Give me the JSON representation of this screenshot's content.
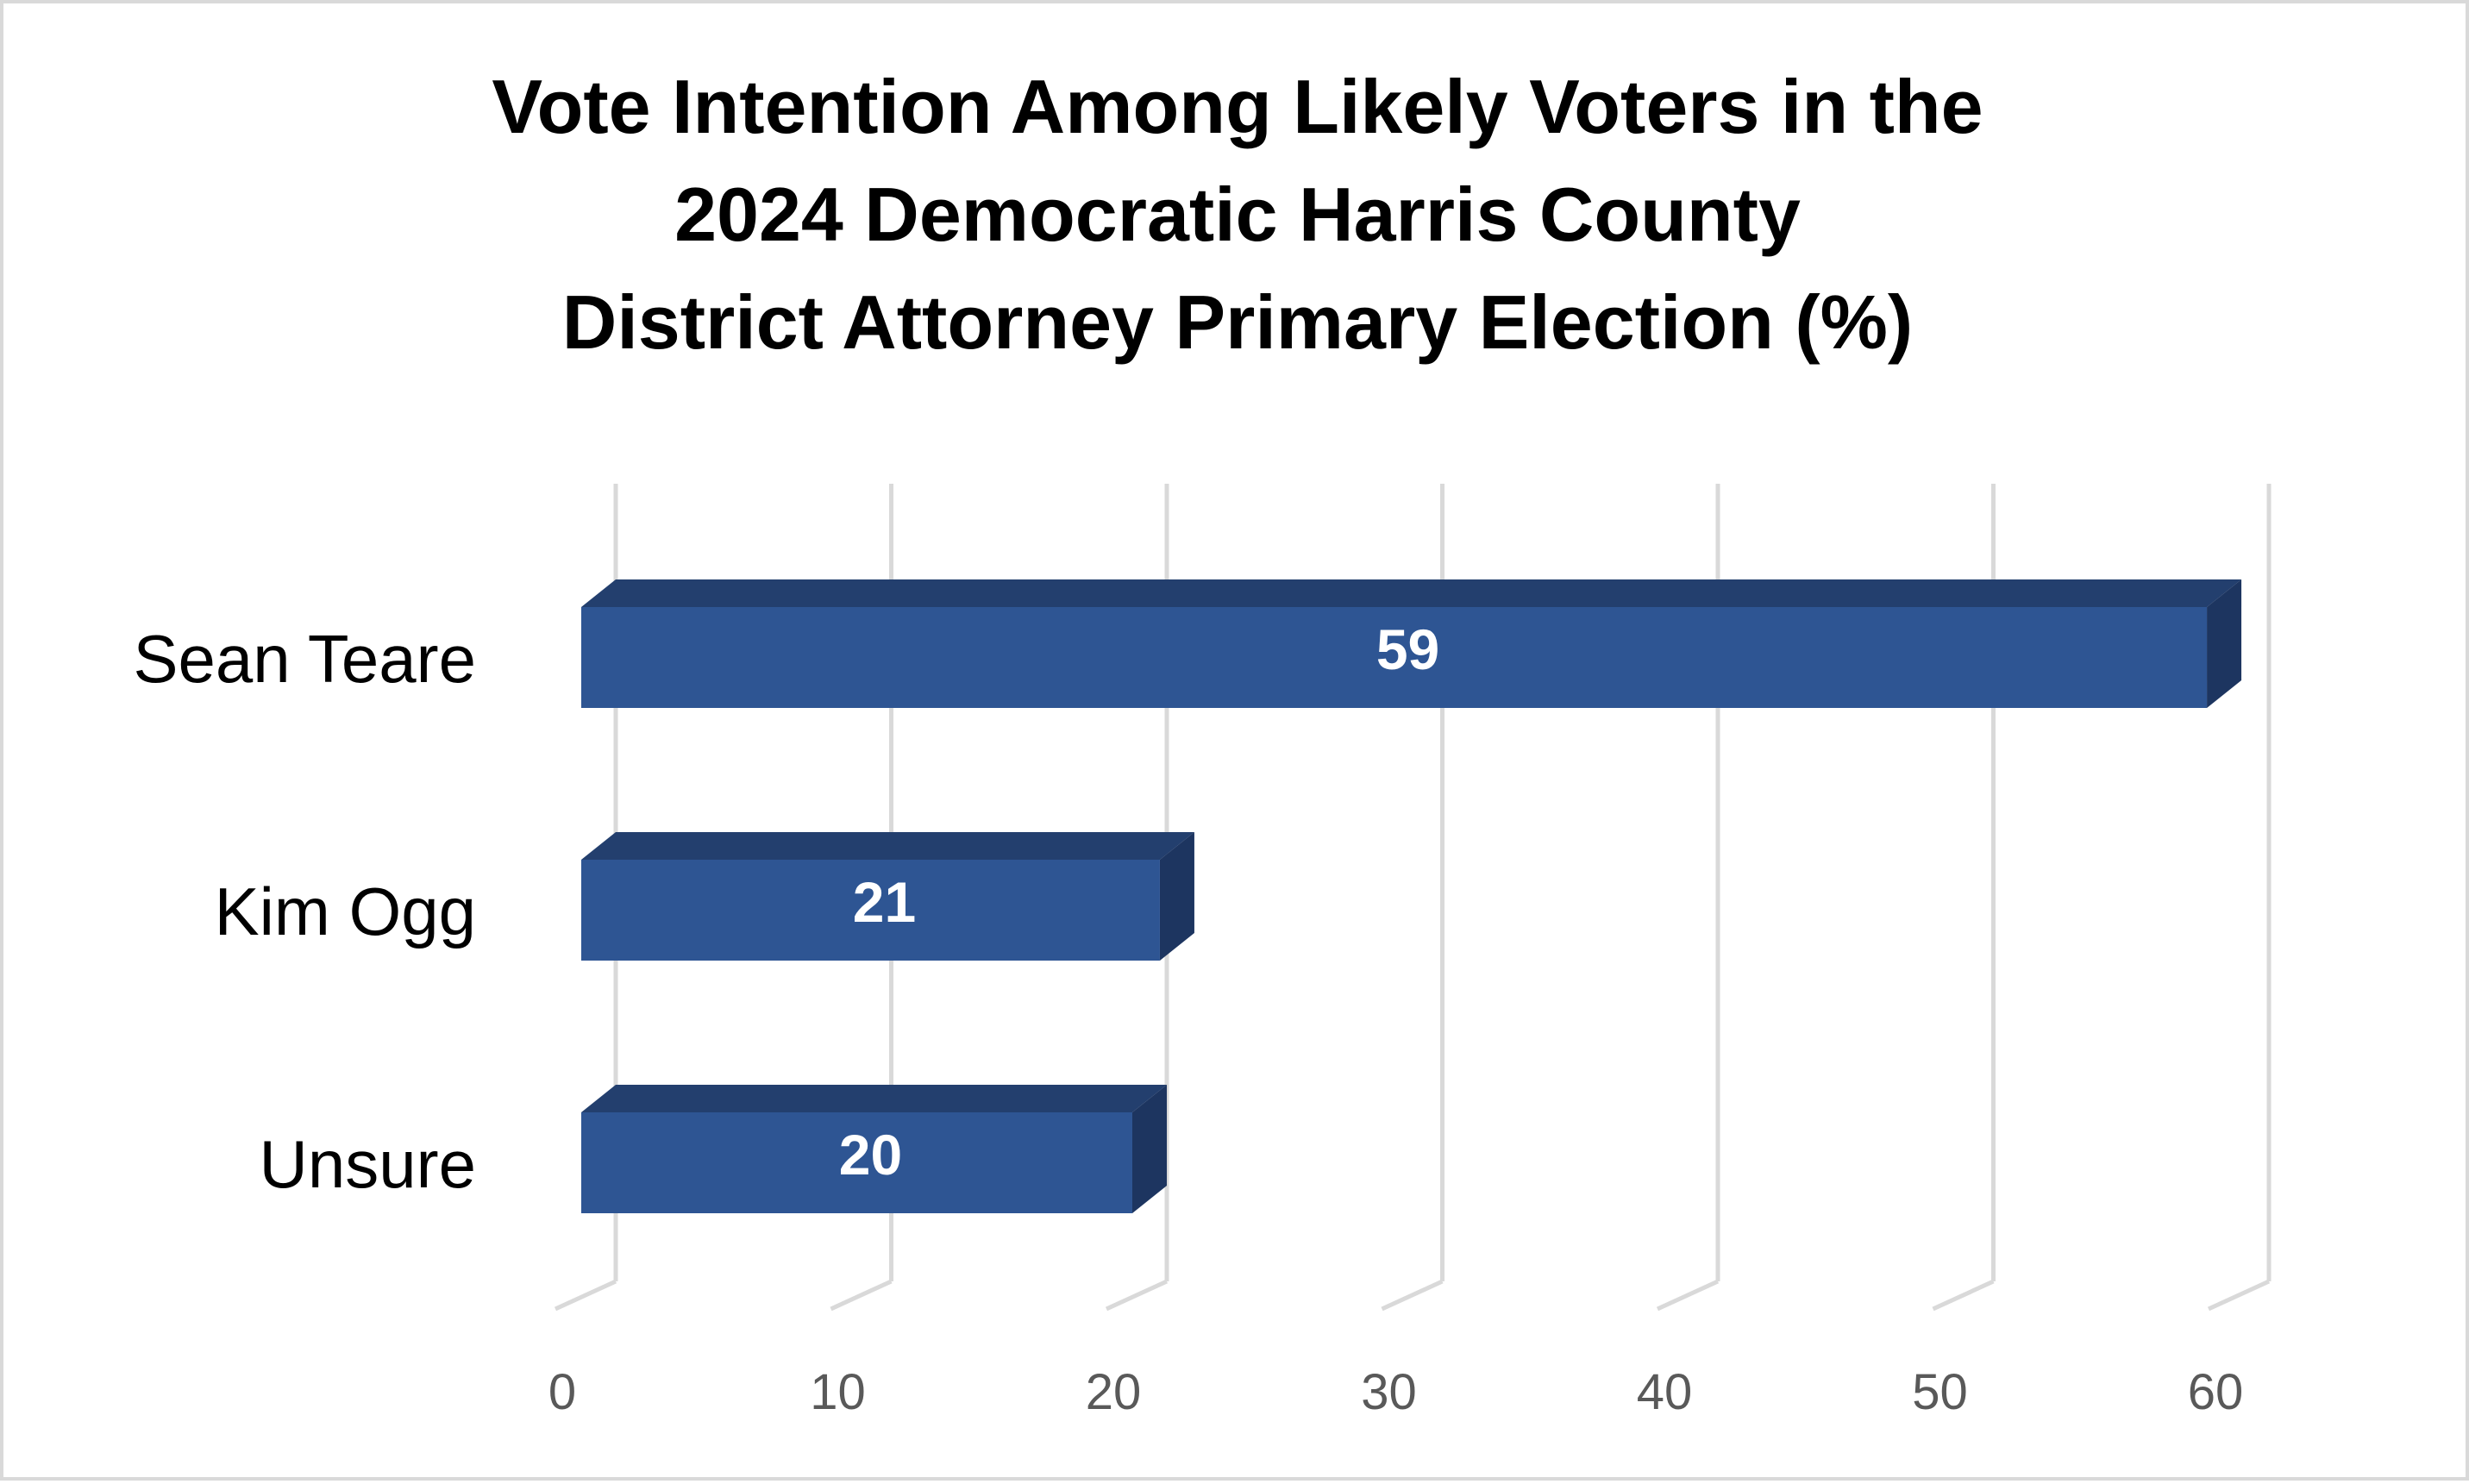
{
  "chart_data": {
    "type": "bar",
    "orientation": "horizontal",
    "style": "3d",
    "title": "Vote Intention Among Likely Voters in the 2024 Democratic Harris County District Attorney Primary Election (%)",
    "title_lines": [
      "Vote Intention Among Likely Voters in the",
      "2024 Democratic Harris County",
      "District Attorney Primary Election (%)"
    ],
    "categories": [
      "Sean Teare",
      "Kim Ogg",
      "Unsure"
    ],
    "values": [
      59,
      21,
      20
    ],
    "data_labels": [
      "59",
      "21",
      "20"
    ],
    "xlim": [
      0,
      60
    ],
    "xticks": [
      0,
      10,
      20,
      30,
      40,
      50,
      60
    ],
    "xtick_labels": [
      "0",
      "10",
      "20",
      "30",
      "40",
      "50",
      "60"
    ],
    "xlabel": "",
    "ylabel": "",
    "grid": true,
    "legend": "none",
    "colors": {
      "bar_front": "#2e5593",
      "bar_top": "#233f6e",
      "bar_side": "#1d3560",
      "gridline": "#d9d9d9",
      "tick_label": "#595959",
      "frame": "#d9d9d9"
    }
  }
}
